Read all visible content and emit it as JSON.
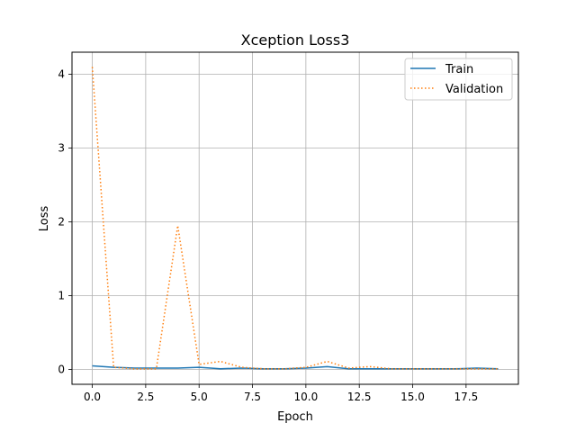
{
  "chart_data": {
    "type": "line",
    "title": "Xception Loss3",
    "xlabel": "Epoch",
    "ylabel": "Loss",
    "xlim": [
      -0.95,
      19.95
    ],
    "ylim": [
      -0.2,
      4.3
    ],
    "xticks": [
      0,
      2.5,
      5,
      7.5,
      10,
      12.5,
      15,
      17.5
    ],
    "xtick_labels": [
      "0.0",
      "2.5",
      "5.0",
      "7.5",
      "10.0",
      "12.5",
      "15.0",
      "17.5"
    ],
    "yticks": [
      0,
      1,
      2,
      3,
      4
    ],
    "ytick_labels": [
      "0",
      "1",
      "2",
      "3",
      "4"
    ],
    "grid": true,
    "legend": "top-right",
    "x": [
      0,
      1,
      2,
      3,
      4,
      5,
      6,
      7,
      8,
      9,
      10,
      11,
      12,
      13,
      14,
      15,
      16,
      17,
      18,
      19
    ],
    "series": [
      {
        "name": "Train",
        "color": "#1f77b4",
        "style": "solid",
        "values": [
          0.05,
          0.03,
          0.02,
          0.02,
          0.02,
          0.03,
          0.01,
          0.02,
          0.01,
          0.01,
          0.02,
          0.04,
          0.01,
          0.01,
          0.01,
          0.01,
          0.01,
          0.01,
          0.02,
          0.01
        ]
      },
      {
        "name": "Validation",
        "color": "#ff7f0e",
        "style": "dotted",
        "values": [
          4.1,
          0.03,
          0.01,
          0.01,
          1.95,
          0.07,
          0.11,
          0.03,
          0.01,
          0.01,
          0.03,
          0.11,
          0.02,
          0.04,
          0.01,
          0.01,
          0.01,
          0.01,
          0.01,
          0.01
        ]
      }
    ]
  }
}
